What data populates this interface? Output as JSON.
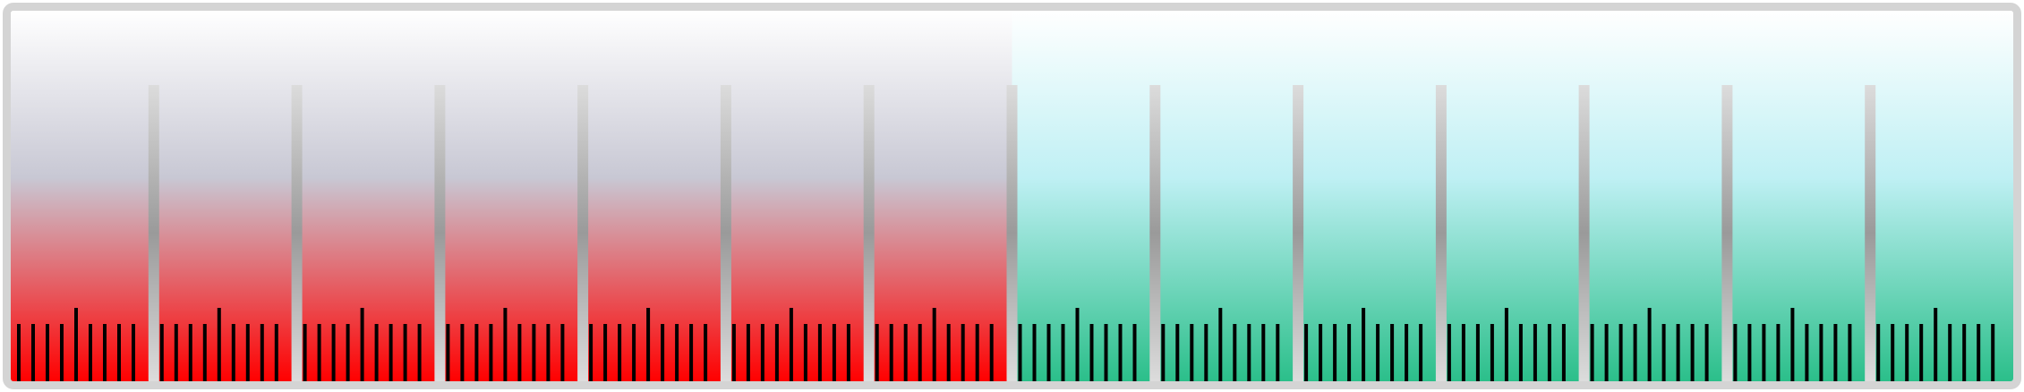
{
  "meter": {
    "segment_count": 14,
    "filled_segments": 7,
    "minor_ticks_per_segment": 9,
    "colors": {
      "frame": "#d4d4d4",
      "filled_bottom": "#ff0000",
      "filled_mid": "#c8c8d4",
      "filled_top": "#ffffff",
      "empty_bottom": "#2bbf8a",
      "empty_mid": "#bff0f4",
      "empty_top": "#ffffff",
      "tick": "#000000",
      "divider_light": "#dcdcdc",
      "divider_dark": "#9a9a9a"
    }
  }
}
